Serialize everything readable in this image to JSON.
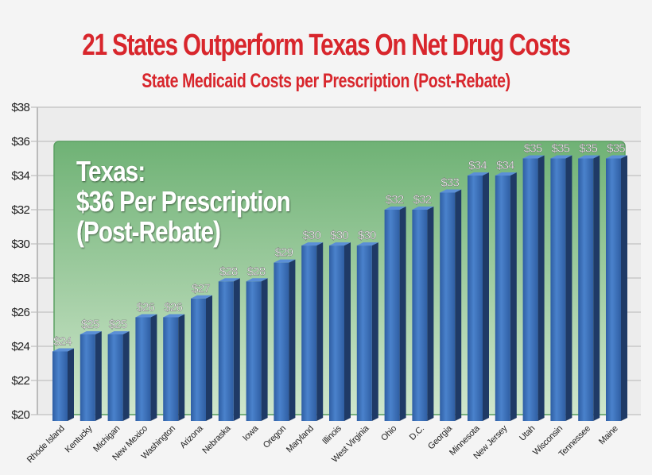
{
  "chart_data": {
    "type": "bar",
    "title": "21 States Outperform Texas On Net Drug Costs",
    "subtitle": "State Medicaid Costs per Prescription (Post-Rebate)",
    "xlabel": "",
    "ylabel": "",
    "ylim": [
      20,
      38
    ],
    "yticks": [
      "$20",
      "$22",
      "$24",
      "$26",
      "$28",
      "$30",
      "$32",
      "$34",
      "$36",
      "$38"
    ],
    "grid": true,
    "categories": [
      "Rhode Island",
      "Kentucky",
      "Michigan",
      "New Mexico",
      "Washington",
      "Arizona",
      "Nebraska",
      "Iowa",
      "Oregon",
      "Maryland",
      "Illinois",
      "West Virginia",
      "Ohio",
      "D.C.",
      "Georgia",
      "Minnesota",
      "New Jersey",
      "Utah",
      "Wisconsin",
      "Tennessee",
      "Maine"
    ],
    "values": [
      23.7,
      24.7,
      24.7,
      25.7,
      25.7,
      26.8,
      27.8,
      27.8,
      28.9,
      29.9,
      29.9,
      29.9,
      32,
      32,
      33,
      34,
      34,
      35,
      35,
      35,
      35
    ],
    "labels": [
      "$24",
      "$25",
      "$25",
      "$26",
      "$26",
      "$27",
      "$28",
      "$28",
      "$29",
      "$30",
      "$30",
      "$30",
      "$32",
      "$32",
      "$33",
      "$34",
      "$34",
      "$35",
      "$35",
      "$35",
      "$35"
    ],
    "reference": {
      "value": 36,
      "lines": [
        "Texas:",
        "$36 Per Prescription",
        "(Post-Rebate)"
      ],
      "color": "#6fb275"
    },
    "bar_color": "#3a6fb8"
  }
}
